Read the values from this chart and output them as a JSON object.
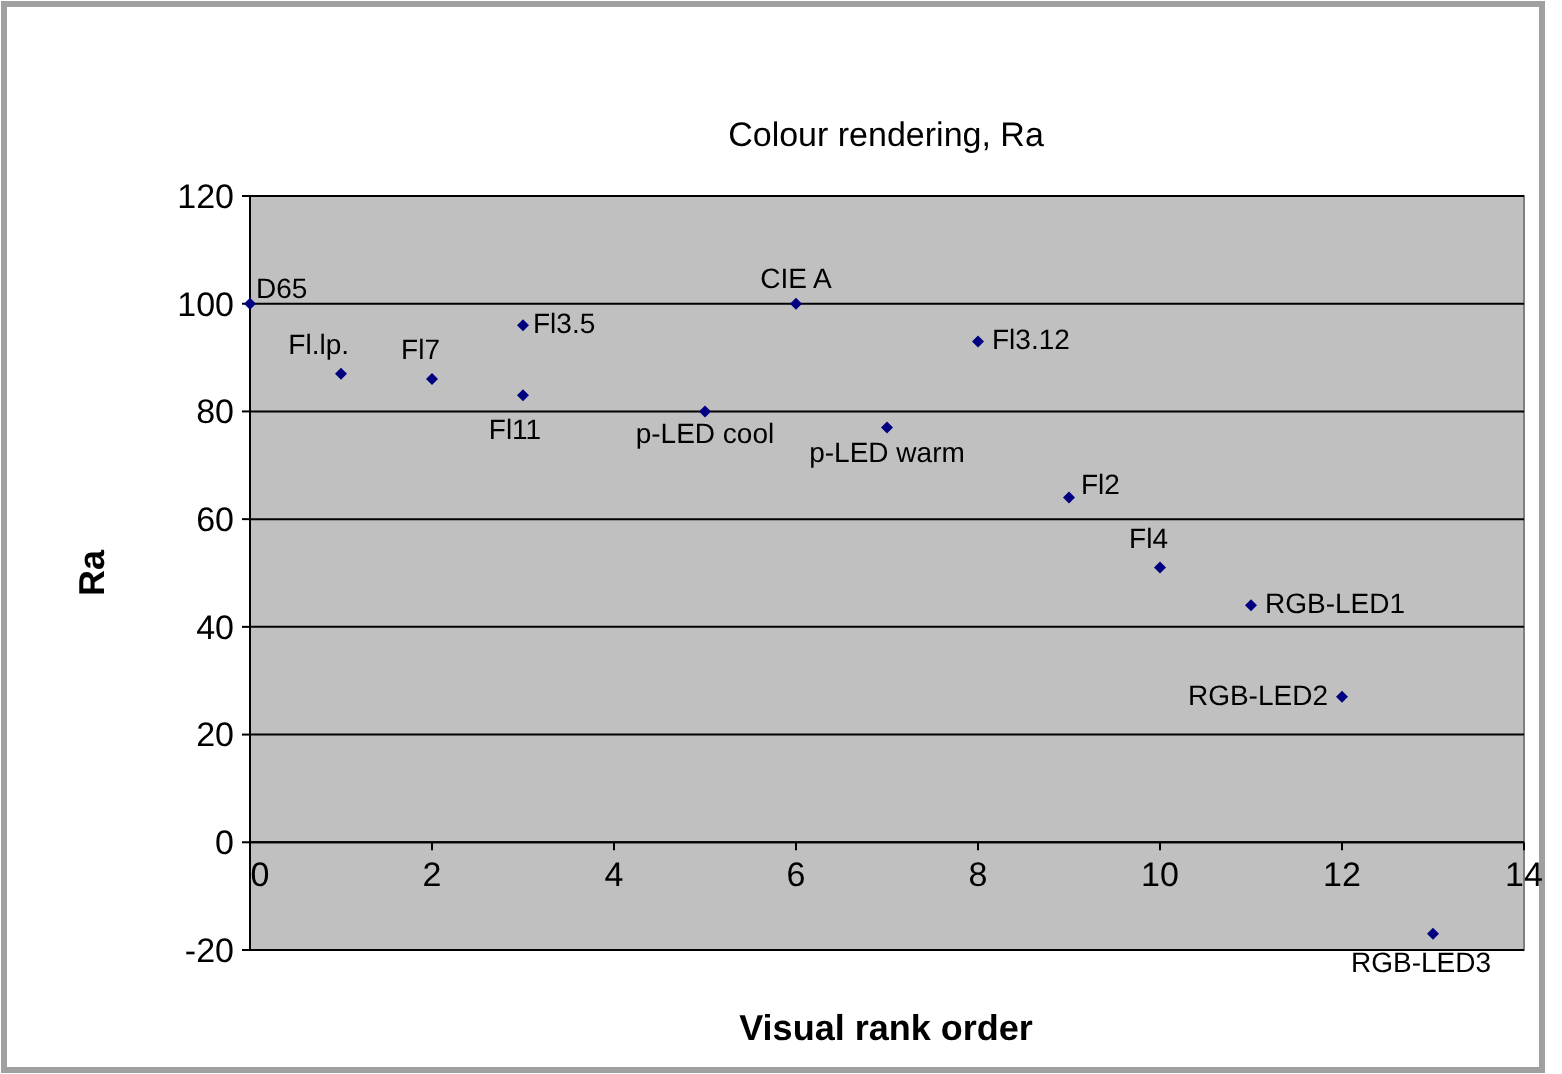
{
  "chart_data": {
    "type": "scatter",
    "title": "Colour rendering, Ra",
    "xlabel": "Visual rank order",
    "ylabel": "Ra",
    "x": [
      0,
      1,
      2,
      3,
      3,
      5,
      6,
      7,
      8,
      9,
      10,
      11,
      12,
      13
    ],
    "values": [
      100,
      87,
      86,
      96,
      83,
      80,
      100,
      77,
      93,
      64,
      51,
      44,
      27,
      -17
    ],
    "color": "#000080",
    "marker": "diamond",
    "grid": "y",
    "xlim": [
      0,
      14
    ],
    "xticks": [
      0,
      2,
      4,
      6,
      8,
      10,
      12,
      14
    ],
    "ylim": [
      -20,
      120
    ],
    "yticks": [
      -20,
      0,
      20,
      40,
      60,
      80,
      100,
      120
    ],
    "annotations": [
      {
        "text": "D65",
        "x": 0,
        "y": 100
      },
      {
        "text": "Fl.lp.",
        "x": 1,
        "y": 87
      },
      {
        "text": "Fl7",
        "x": 2,
        "y": 86
      },
      {
        "text": "Fl3.5",
        "x": 3,
        "y": 96
      },
      {
        "text": "Fl11",
        "x": 3,
        "y": 83
      },
      {
        "text": "p-LED cool",
        "x": 5,
        "y": 80
      },
      {
        "text": "CIE A",
        "x": 6,
        "y": 100
      },
      {
        "text": "p-LED warm",
        "x": 7,
        "y": 77
      },
      {
        "text": "Fl3.12",
        "x": 8,
        "y": 93
      },
      {
        "text": "Fl2",
        "x": 9,
        "y": 64
      },
      {
        "text": "Fl4",
        "x": 10,
        "y": 51
      },
      {
        "text": "RGB-LED1",
        "x": 11,
        "y": 44
      },
      {
        "text": "RGB-LED2",
        "x": 12,
        "y": 27
      },
      {
        "text": "RGB-LED3",
        "x": 13,
        "y": -17
      }
    ]
  }
}
